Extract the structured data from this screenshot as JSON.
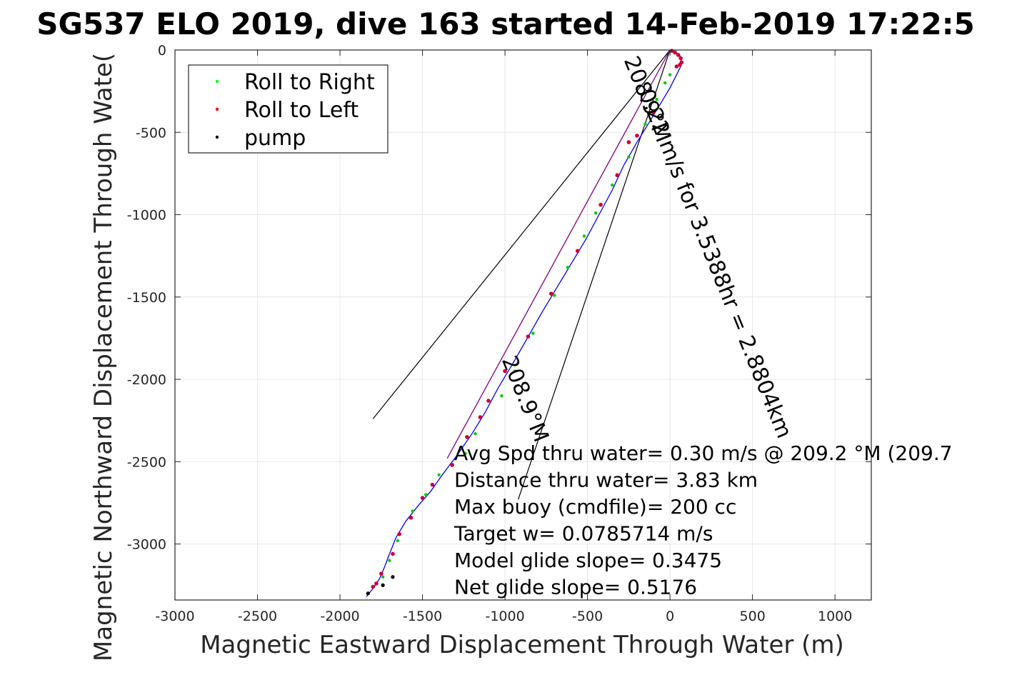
{
  "chart_data": {
    "type": "line",
    "title": "SG537 ELO 2019, dive 163 started 14-Feb-2019 17:22:5",
    "xlabel": "Magnetic Eastward Displacement Through Water (m)",
    "ylabel": "Magnetic Northward Displacement Through Wate(",
    "xlim": [
      -3000,
      1220
    ],
    "ylim": [
      -3340,
      0
    ],
    "grid": true,
    "x_ticks": [
      -3000,
      -2500,
      -2000,
      -1500,
      -1000,
      -500,
      0,
      500,
      1000
    ],
    "y_ticks": [
      0,
      -500,
      -1000,
      -1500,
      -2000,
      -2500,
      -3000
    ],
    "legend": {
      "placement": "top-left",
      "entries": [
        {
          "name": "Roll to Right",
          "color": "#00ff00"
        },
        {
          "name": "Roll to Left",
          "color": "#ff0000"
        },
        {
          "name": "pump",
          "color": "#000000"
        }
      ]
    },
    "track": {
      "color": "#0000ff",
      "points": [
        [
          0,
          0
        ],
        [
          30,
          -10
        ],
        [
          60,
          -35
        ],
        [
          70,
          -70
        ],
        [
          65,
          -100
        ],
        [
          40,
          -150
        ],
        [
          0,
          -230
        ],
        [
          -60,
          -330
        ],
        [
          -120,
          -430
        ],
        [
          -200,
          -560
        ],
        [
          -280,
          -700
        ],
        [
          -350,
          -850
        ],
        [
          -430,
          -1000
        ],
        [
          -510,
          -1150
        ],
        [
          -600,
          -1300
        ],
        [
          -690,
          -1450
        ],
        [
          -780,
          -1600
        ],
        [
          -870,
          -1760
        ],
        [
          -950,
          -1900
        ],
        [
          -1040,
          -2050
        ],
        [
          -1120,
          -2200
        ],
        [
          -1200,
          -2330
        ],
        [
          -1290,
          -2460
        ],
        [
          -1380,
          -2580
        ],
        [
          -1450,
          -2680
        ],
        [
          -1520,
          -2760
        ],
        [
          -1600,
          -2860
        ],
        [
          -1660,
          -2960
        ],
        [
          -1700,
          -3060
        ],
        [
          -1730,
          -3140
        ],
        [
          -1760,
          -3210
        ],
        [
          -1800,
          -3270
        ],
        [
          -1840,
          -3320
        ]
      ]
    },
    "course_line": {
      "color": "#800080",
      "x": [
        0,
        -1350
      ],
      "y": [
        0,
        -2480
      ]
    },
    "wedge_lines": {
      "color": "#000000",
      "lines": [
        {
          "x": [
            0,
            -1800
          ],
          "y": [
            0,
            -2240
          ]
        },
        {
          "x": [
            0,
            -920
          ],
          "y": [
            0,
            -2730
          ]
        }
      ]
    },
    "roll_right": {
      "color": "#00cc00",
      "x": [
        0,
        -30,
        -80,
        -150,
        -250,
        -350,
        -450,
        -520,
        -620,
        -700,
        -830,
        -940,
        -1020,
        -1180,
        -1240,
        -1400,
        -1480,
        -1560,
        -1650,
        -1700,
        -1740
      ],
      "y": [
        -150,
        -200,
        -300,
        -450,
        -650,
        -820,
        -990,
        -1130,
        -1320,
        -1490,
        -1720,
        -1950,
        -2100,
        -2330,
        -2450,
        -2580,
        -2700,
        -2800,
        -2980,
        -3100,
        -3200
      ]
    },
    "roll_left": {
      "color": "#cc0033",
      "x": [
        10,
        30,
        50,
        65,
        70,
        60,
        40,
        -100,
        -200,
        -250,
        -320,
        -420,
        -560,
        -720,
        -860,
        -1000,
        -1100,
        -1150,
        -1230,
        -1320,
        -1440,
        -1500,
        -1570,
        -1640,
        -1680,
        -1750,
        -1780,
        -1800
      ],
      "y": [
        -5,
        -15,
        -30,
        -50,
        -75,
        -90,
        -100,
        -380,
        -520,
        -560,
        -760,
        -940,
        -1220,
        -1480,
        -1740,
        -1950,
        -2130,
        -2230,
        -2350,
        -2520,
        -2640,
        -2720,
        -2840,
        -2940,
        -3060,
        -3180,
        -3240,
        -3260
      ]
    },
    "pump": {
      "color": "#000000",
      "x": [
        -1680,
        -1740,
        -1830
      ],
      "y": [
        -3200,
        -3250,
        -3300
      ]
    },
    "heading_labels": [
      {
        "text": "208.9°M",
        "x": -280,
        "y": -60,
        "rotate": 68
      },
      {
        "text": "0.22 m/s for 3.5388hr = 2.8804km",
        "x": -190,
        "y": -260,
        "rotate": 68
      },
      {
        "text": "208.9°M",
        "x": -1020,
        "y": -1880,
        "rotate": 68
      }
    ],
    "annotations": [
      "Avg Spd thru water=  0.30 m/s @ 209.2 °M (209.7",
      "Distance thru water=  3.83 km",
      "Max buoy (cmdfile)= 200 cc",
      "Target w= 0.0785714 m/s",
      "Model glide slope= 0.3475",
      "Net glide slope= 0.5176"
    ]
  }
}
